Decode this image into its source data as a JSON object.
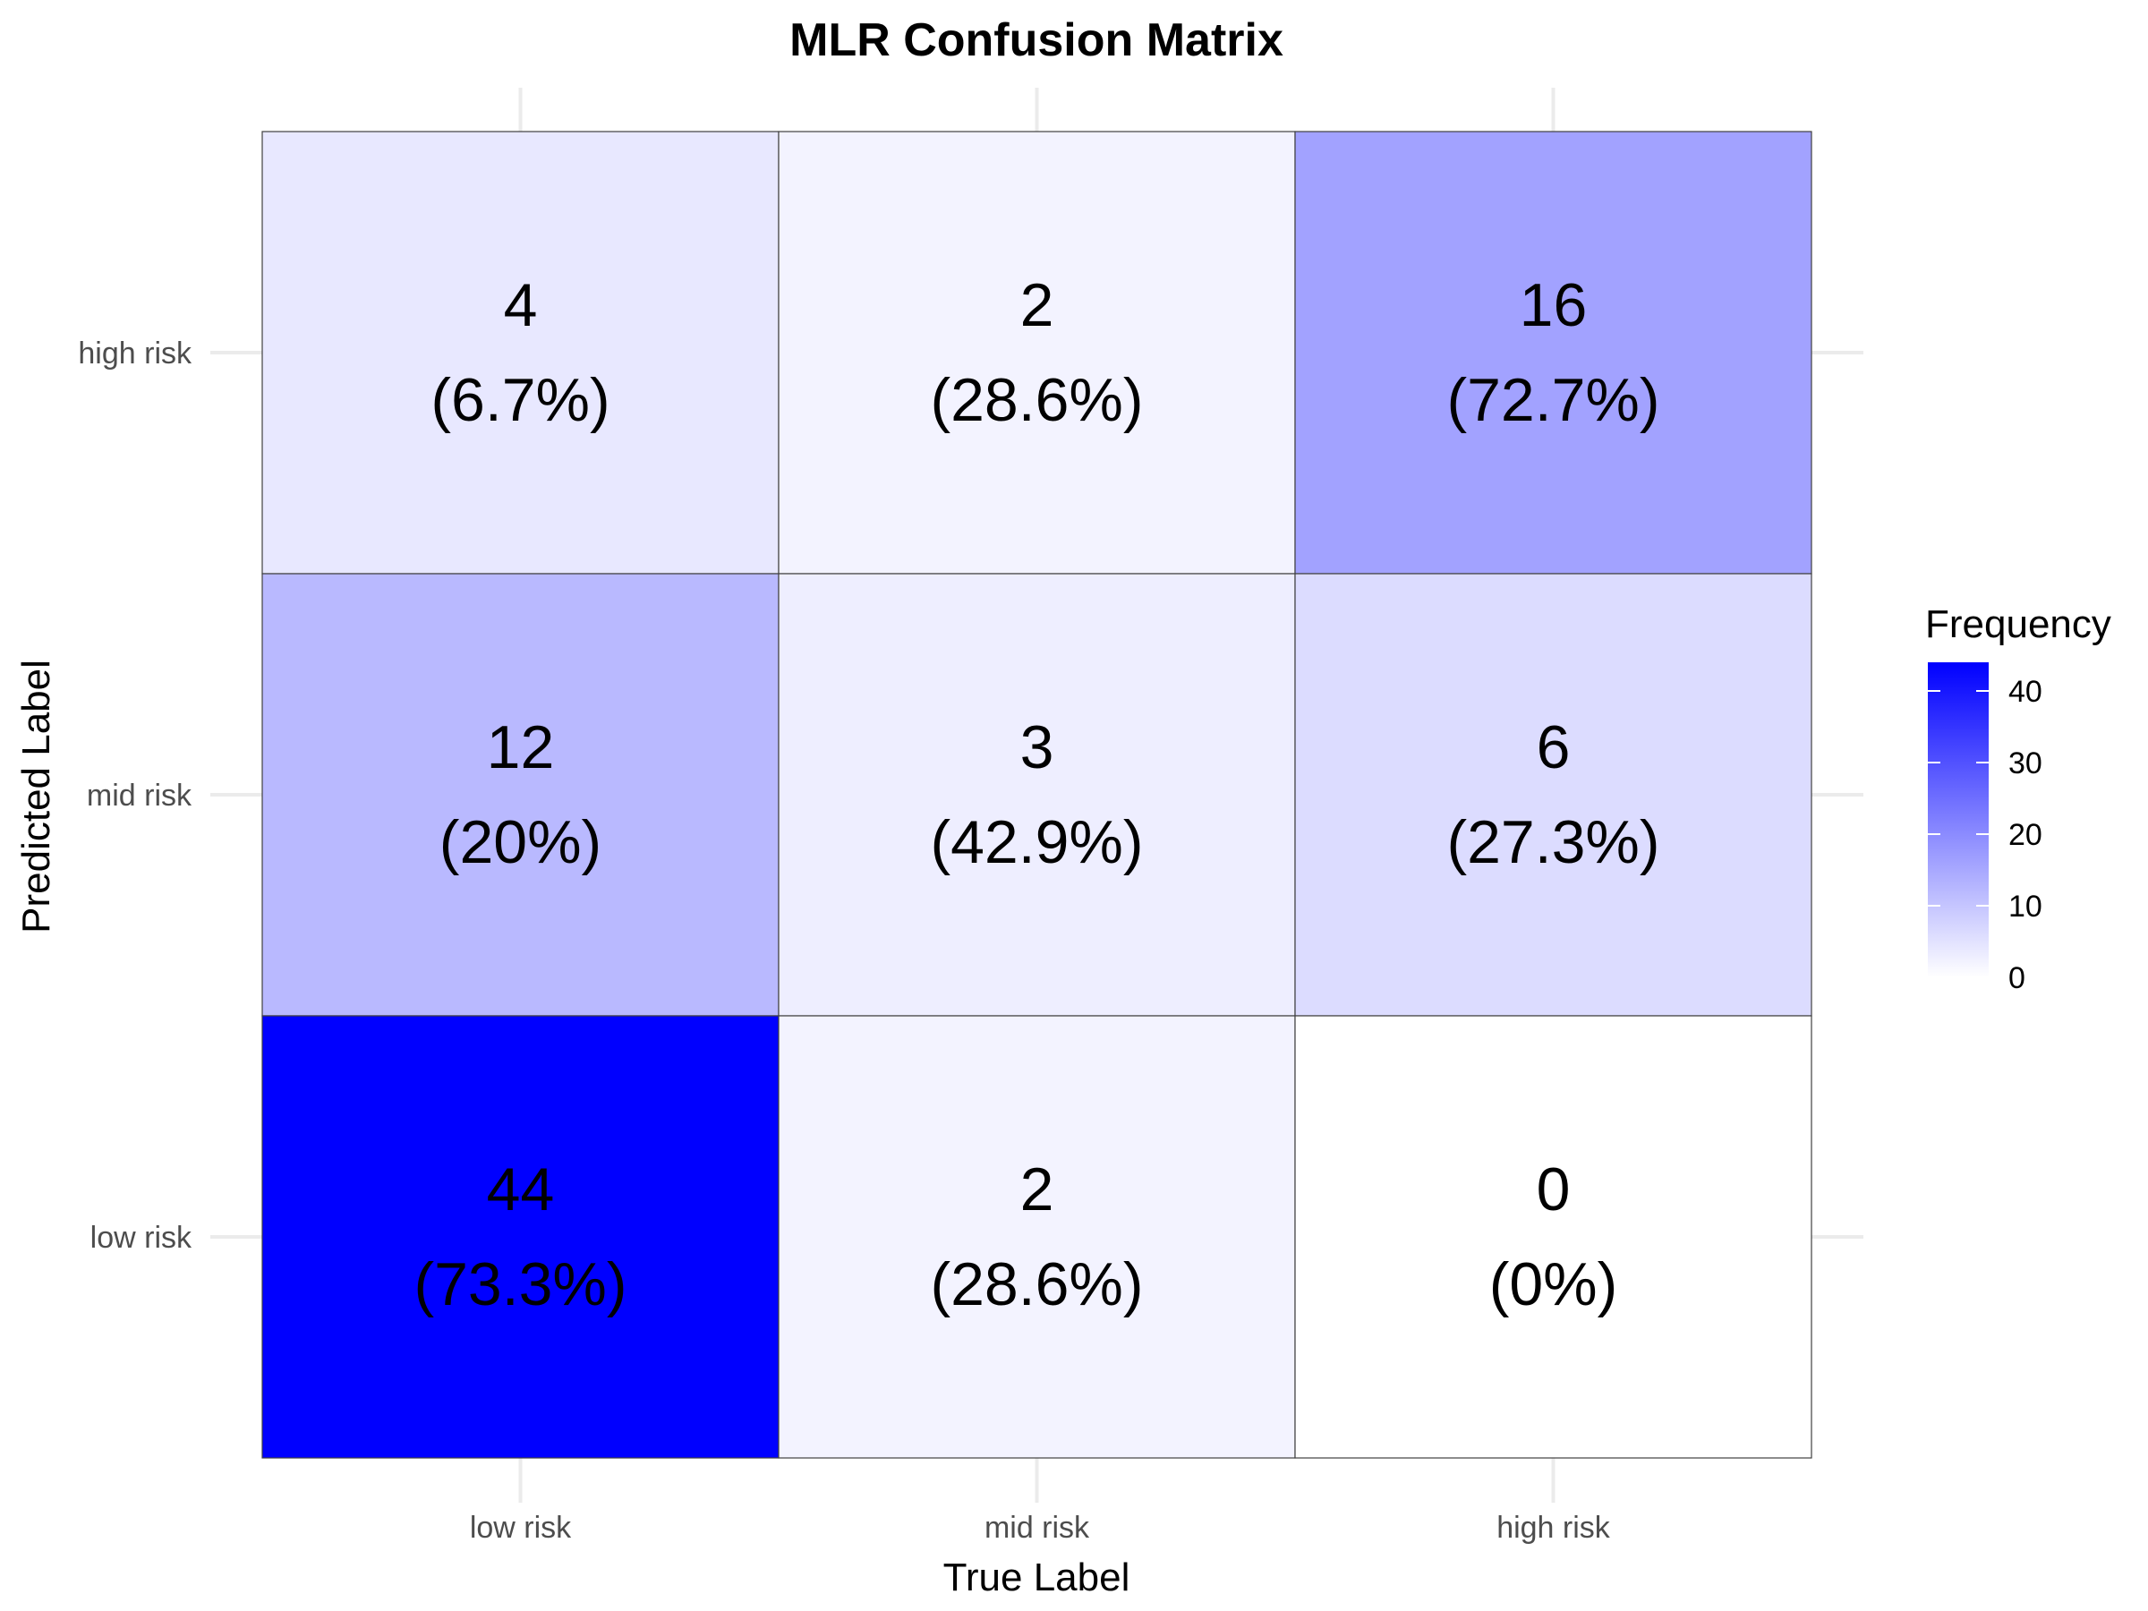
{
  "chart_data": {
    "type": "heatmap",
    "title": "MLR Confusion Matrix",
    "xlabel": "True Label",
    "ylabel": "Predicted Label",
    "x_categories": [
      "low risk",
      "mid risk",
      "high risk"
    ],
    "y_categories": [
      "low risk",
      "mid risk",
      "high risk"
    ],
    "cells": [
      {
        "true": "low risk",
        "predicted": "high risk",
        "count": 4,
        "pct": "(6.7%)"
      },
      {
        "true": "mid risk",
        "predicted": "high risk",
        "count": 2,
        "pct": "(28.6%)"
      },
      {
        "true": "high risk",
        "predicted": "high risk",
        "count": 16,
        "pct": "(72.7%)"
      },
      {
        "true": "low risk",
        "predicted": "mid risk",
        "count": 12,
        "pct": "(20%)"
      },
      {
        "true": "mid risk",
        "predicted": "mid risk",
        "count": 3,
        "pct": "(42.9%)"
      },
      {
        "true": "high risk",
        "predicted": "mid risk",
        "count": 6,
        "pct": "(27.3%)"
      },
      {
        "true": "low risk",
        "predicted": "low risk",
        "count": 44,
        "pct": "(73.3%)"
      },
      {
        "true": "mid risk",
        "predicted": "low risk",
        "count": 2,
        "pct": "(28.6%)"
      },
      {
        "true": "high risk",
        "predicted": "low risk",
        "count": 0,
        "pct": "(0%)"
      }
    ],
    "legend": {
      "title": "Frequency",
      "ticks": [
        0,
        10,
        20,
        30,
        40
      ],
      "range": [
        0,
        44
      ],
      "low_color": "#ffffff",
      "high_color": "#0000ff",
      "placement": "right"
    },
    "grid": true
  }
}
